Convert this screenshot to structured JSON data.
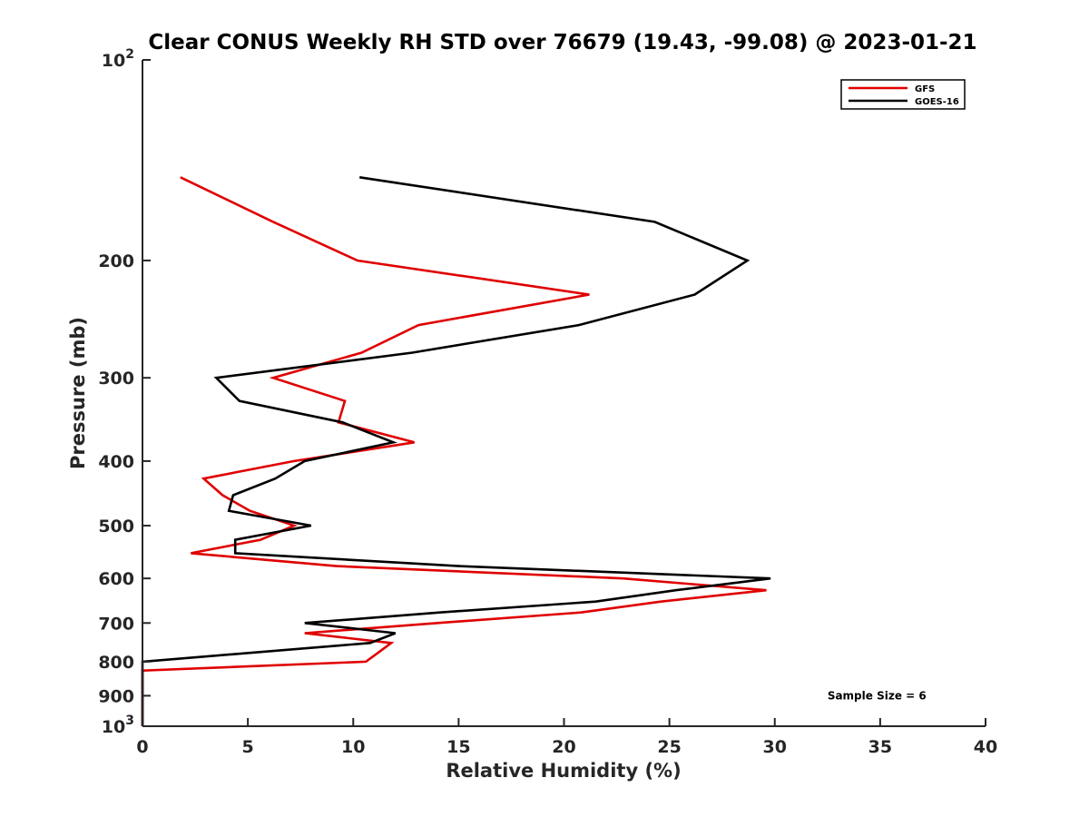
{
  "chart_data": {
    "type": "line",
    "title": "Clear CONUS Weekly RH STD over 76679 (19.43, -99.08) @ 2023-01-21",
    "xlabel": "Relative Humidity (%)",
    "ylabel": "Pressure (mb)",
    "xlim": [
      0,
      40
    ],
    "ylim": [
      100,
      1000
    ],
    "y_scale": "log",
    "y_reversed": true,
    "x_ticks": [
      0,
      5,
      10,
      15,
      20,
      25,
      30,
      35,
      40
    ],
    "y_ticks": [
      {
        "value": 100,
        "base": "10",
        "exp": "2"
      },
      {
        "value": 200,
        "label": "200"
      },
      {
        "value": 300,
        "label": "300"
      },
      {
        "value": 400,
        "label": "400"
      },
      {
        "value": 500,
        "label": "500"
      },
      {
        "value": 600,
        "label": "600"
      },
      {
        "value": 700,
        "label": "700"
      },
      {
        "value": 800,
        "label": "800"
      },
      {
        "value": 900,
        "label": "900"
      },
      {
        "value": 1000,
        "base": "10",
        "exp": "3"
      }
    ],
    "grid": false,
    "legend_position": "top-right",
    "series": [
      {
        "name": "GFS",
        "color": "#e00000",
        "points": [
          {
            "x": 1.8,
            "y": 150
          },
          {
            "x": 6.2,
            "y": 175
          },
          {
            "x": 10.2,
            "y": 200
          },
          {
            "x": 21.2,
            "y": 225
          },
          {
            "x": 13.1,
            "y": 250
          },
          {
            "x": 10.4,
            "y": 275
          },
          {
            "x": 6.2,
            "y": 300
          },
          {
            "x": 9.6,
            "y": 325
          },
          {
            "x": 9.3,
            "y": 350
          },
          {
            "x": 12.9,
            "y": 375
          },
          {
            "x": 7.2,
            "y": 400
          },
          {
            "x": 2.9,
            "y": 425
          },
          {
            "x": 3.8,
            "y": 450
          },
          {
            "x": 5.1,
            "y": 475
          },
          {
            "x": 7.2,
            "y": 500
          },
          {
            "x": 5.6,
            "y": 525
          },
          {
            "x": 2.3,
            "y": 550
          },
          {
            "x": 9.2,
            "y": 575
          },
          {
            "x": 22.8,
            "y": 600
          },
          {
            "x": 29.6,
            "y": 625
          },
          {
            "x": 24.6,
            "y": 650
          },
          {
            "x": 20.8,
            "y": 675
          },
          {
            "x": 14.0,
            "y": 700
          },
          {
            "x": 7.7,
            "y": 725
          },
          {
            "x": 11.8,
            "y": 750
          },
          {
            "x": 11.2,
            "y": 775
          },
          {
            "x": 10.6,
            "y": 800
          },
          {
            "x": 0,
            "y": 825
          },
          {
            "x": 0,
            "y": 850
          },
          {
            "x": 0,
            "y": 900
          },
          {
            "x": 0,
            "y": 1000
          }
        ]
      },
      {
        "name": "GOES-16",
        "color": "#000000",
        "points": [
          {
            "x": 10.3,
            "y": 150
          },
          {
            "x": 24.3,
            "y": 175
          },
          {
            "x": 28.7,
            "y": 200
          },
          {
            "x": 26.2,
            "y": 225
          },
          {
            "x": 20.7,
            "y": 250
          },
          {
            "x": 12.8,
            "y": 275
          },
          {
            "x": 3.5,
            "y": 300
          },
          {
            "x": 4.6,
            "y": 325
          },
          {
            "x": 9.5,
            "y": 350
          },
          {
            "x": 11.9,
            "y": 375
          },
          {
            "x": 7.7,
            "y": 400
          },
          {
            "x": 6.3,
            "y": 425
          },
          {
            "x": 4.3,
            "y": 450
          },
          {
            "x": 4.1,
            "y": 475
          },
          {
            "x": 8.0,
            "y": 500
          },
          {
            "x": 4.4,
            "y": 525
          },
          {
            "x": 4.4,
            "y": 550
          },
          {
            "x": 15.0,
            "y": 575
          },
          {
            "x": 29.8,
            "y": 600
          },
          {
            "x": 25.3,
            "y": 625
          },
          {
            "x": 21.5,
            "y": 650
          },
          {
            "x": 14.1,
            "y": 675
          },
          {
            "x": 7.7,
            "y": 700
          },
          {
            "x": 12.0,
            "y": 725
          },
          {
            "x": 10.8,
            "y": 750
          },
          {
            "x": 0,
            "y": 800
          },
          {
            "x": 0,
            "y": 850
          },
          {
            "x": 0,
            "y": 900
          },
          {
            "x": 0,
            "y": 1000
          }
        ]
      }
    ],
    "annotations": [
      {
        "text": "Sample Size = 6",
        "x": 32.5,
        "y": 900
      }
    ]
  }
}
